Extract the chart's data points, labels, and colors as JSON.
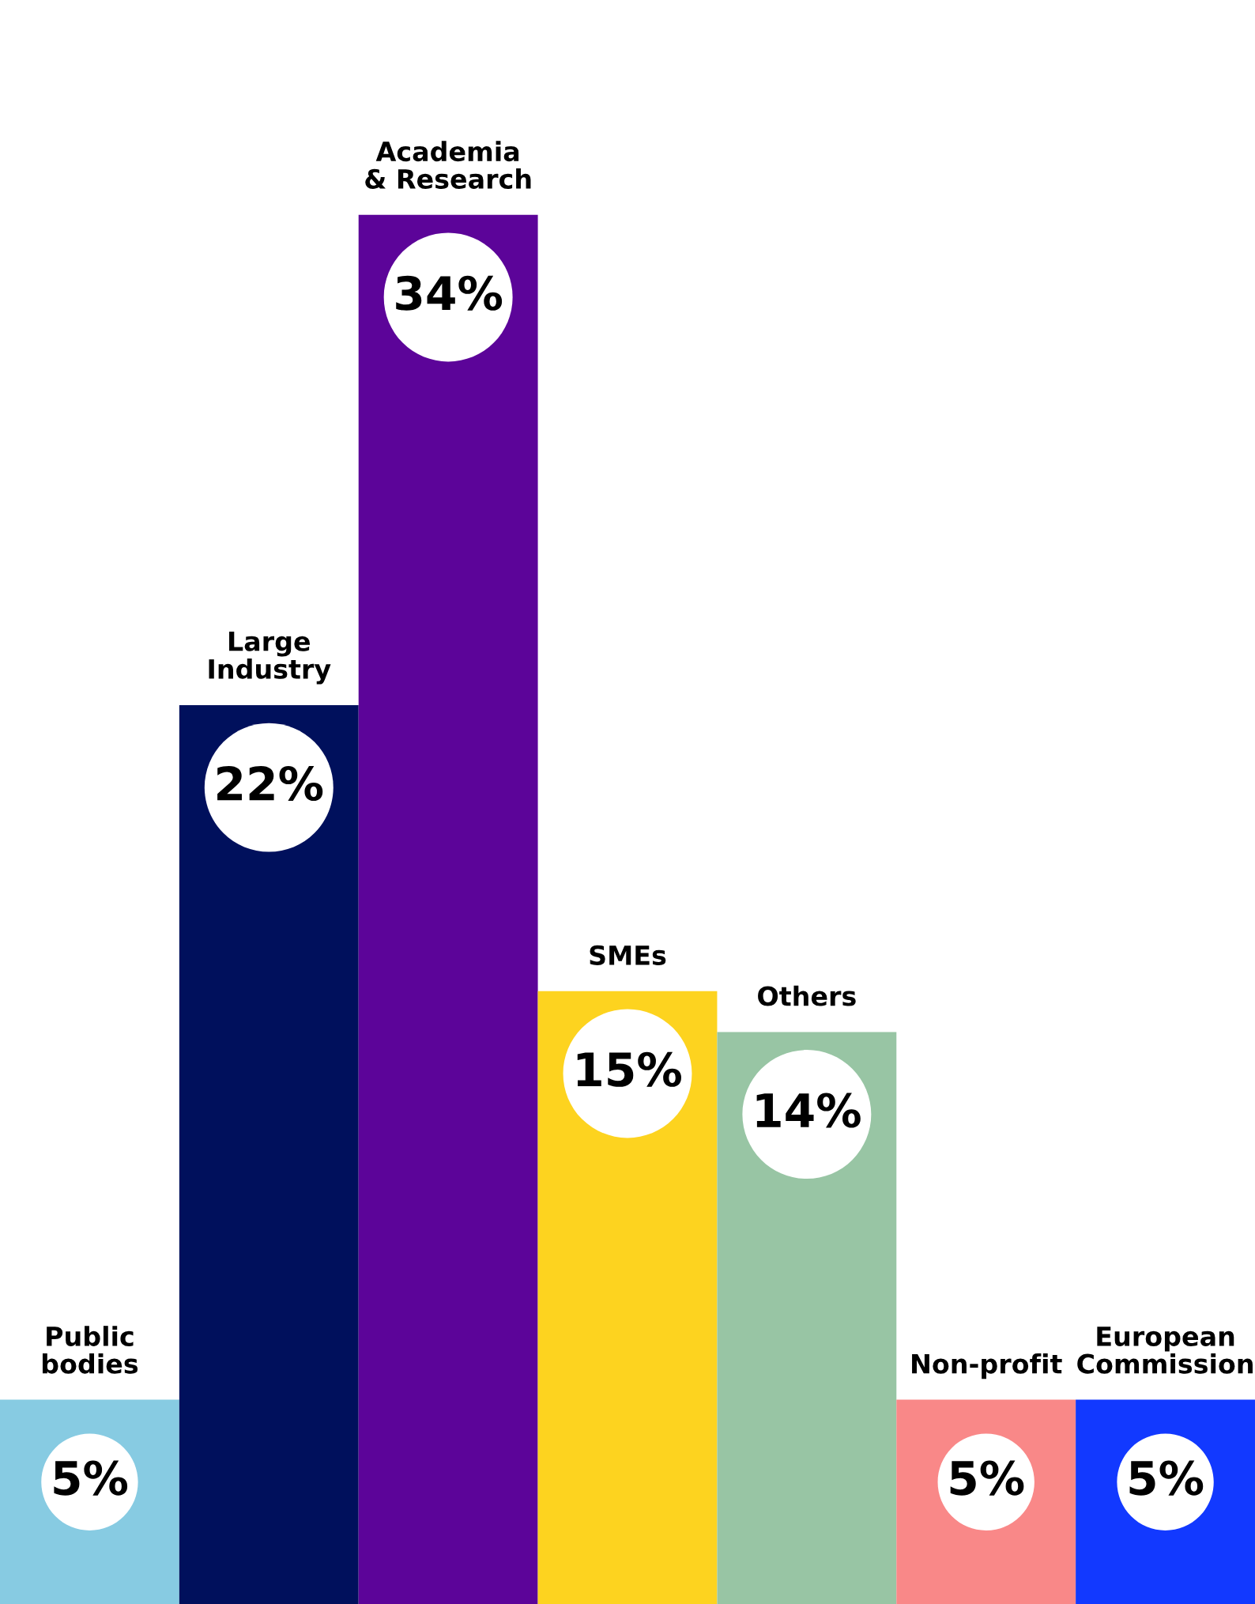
{
  "chart_data": {
    "type": "bar",
    "categories": [
      "Public\nbodies",
      "Large\nIndustry",
      "Academia\n& Research",
      "SMEs",
      "Others",
      "Non-profit",
      "European\nCommission"
    ],
    "values": [
      5,
      22,
      34,
      15,
      14,
      5,
      5
    ],
    "colors": [
      "#87cbe2",
      "#00105c",
      "#5c0499",
      "#fdd31f",
      "#98c5a4",
      "#f98888",
      "#1239ff"
    ],
    "value_labels": [
      "5%",
      "22%",
      "34%",
      "15%",
      "14%",
      "5%",
      "5%"
    ],
    "legend": false
  }
}
